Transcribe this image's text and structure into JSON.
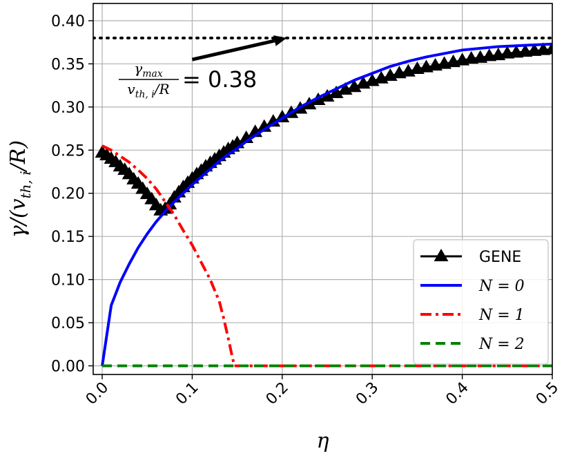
{
  "chart_data": {
    "type": "line",
    "xlabel": "η",
    "ylabel": "γ/(v",
    "ylabel_sub": "th, i",
    "ylabel_tail": "/R)",
    "xlim": [
      -0.01,
      0.5
    ],
    "ylim": [
      -0.01,
      0.42
    ],
    "x_ticks": [
      0.0,
      0.1,
      0.2,
      0.3,
      0.4,
      0.5
    ],
    "x_tick_labels": [
      "0.0",
      "0.1",
      "0.2",
      "0.3",
      "0.4",
      "0.5"
    ],
    "y_ticks": [
      0.0,
      0.05,
      0.1,
      0.15,
      0.2,
      0.25,
      0.3,
      0.35,
      0.4
    ],
    "y_tick_labels": [
      "0.00",
      "0.05",
      "0.10",
      "0.15",
      "0.20",
      "0.25",
      "0.30",
      "0.35",
      "0.40"
    ],
    "grid": true,
    "legend_position": "bottom-right",
    "hline": {
      "y": 0.38,
      "style": "dotted",
      "color": "#000000"
    },
    "annotation": {
      "num": "γ",
      "num_sub": "max",
      "den": "v",
      "den_sub": "th, i",
      "den_tail": "/R",
      "value_text": "= 0.38",
      "arrow_from": [
        0.1,
        0.355
      ],
      "arrow_to": [
        0.205,
        0.38
      ]
    },
    "series": [
      {
        "name": "GENE",
        "color": "#000000",
        "style": "solid-triangle",
        "x": [
          0.0,
          0.005,
          0.01,
          0.015,
          0.02,
          0.025,
          0.03,
          0.035,
          0.04,
          0.045,
          0.05,
          0.055,
          0.06,
          0.065,
          0.07,
          0.075,
          0.08,
          0.085,
          0.09,
          0.095,
          0.1,
          0.105,
          0.11,
          0.115,
          0.12,
          0.125,
          0.13,
          0.135,
          0.14,
          0.145,
          0.15,
          0.16,
          0.17,
          0.18,
          0.19,
          0.2,
          0.21,
          0.22,
          0.23,
          0.24,
          0.25,
          0.26,
          0.27,
          0.28,
          0.29,
          0.3,
          0.31,
          0.32,
          0.33,
          0.34,
          0.35,
          0.36,
          0.37,
          0.38,
          0.39,
          0.4,
          0.41,
          0.42,
          0.43,
          0.44,
          0.45,
          0.46,
          0.47,
          0.48,
          0.49,
          0.5
        ],
        "y": [
          0.247,
          0.244,
          0.24,
          0.236,
          0.231,
          0.227,
          0.222,
          0.216,
          0.211,
          0.205,
          0.199,
          0.193,
          0.186,
          0.18,
          0.182,
          0.187,
          0.195,
          0.201,
          0.207,
          0.212,
          0.217,
          0.222,
          0.226,
          0.231,
          0.235,
          0.239,
          0.243,
          0.247,
          0.251,
          0.254,
          0.258,
          0.264,
          0.271,
          0.277,
          0.283,
          0.288,
          0.293,
          0.298,
          0.303,
          0.308,
          0.312,
          0.316,
          0.32,
          0.323,
          0.327,
          0.33,
          0.333,
          0.336,
          0.339,
          0.341,
          0.344,
          0.346,
          0.348,
          0.35,
          0.352,
          0.354,
          0.356,
          0.357,
          0.359,
          0.36,
          0.362,
          0.363,
          0.364,
          0.365,
          0.366,
          0.367
        ]
      },
      {
        "name": "N = 0",
        "color": "#0000ff",
        "style": "solid",
        "x": [
          0.0,
          0.01,
          0.02,
          0.03,
          0.04,
          0.05,
          0.06,
          0.07,
          0.08,
          0.09,
          0.1,
          0.11,
          0.12,
          0.13,
          0.14,
          0.15,
          0.16,
          0.18,
          0.2,
          0.22,
          0.24,
          0.26,
          0.28,
          0.3,
          0.32,
          0.34,
          0.36,
          0.38,
          0.4,
          0.42,
          0.44,
          0.46,
          0.48,
          0.5
        ],
        "y": [
          0.0,
          0.07,
          0.097,
          0.118,
          0.137,
          0.153,
          0.167,
          0.179,
          0.19,
          0.2,
          0.21,
          0.219,
          0.228,
          0.237,
          0.245,
          0.252,
          0.26,
          0.274,
          0.287,
          0.3,
          0.311,
          0.321,
          0.331,
          0.339,
          0.347,
          0.353,
          0.358,
          0.362,
          0.366,
          0.368,
          0.37,
          0.371,
          0.372,
          0.373
        ]
      },
      {
        "name": "N = 1",
        "color": "#ff0000",
        "style": "dashdot",
        "x": [
          0.0,
          0.01,
          0.02,
          0.03,
          0.04,
          0.05,
          0.06,
          0.07,
          0.08,
          0.09,
          0.1,
          0.11,
          0.12,
          0.13,
          0.135,
          0.14,
          0.145,
          0.147,
          0.15,
          0.16,
          0.2,
          0.3,
          0.4,
          0.5
        ],
        "y": [
          0.255,
          0.25,
          0.243,
          0.236,
          0.227,
          0.217,
          0.205,
          0.19,
          0.175,
          0.157,
          0.14,
          0.12,
          0.1,
          0.075,
          0.055,
          0.032,
          0.008,
          0.0,
          0.0,
          0.0,
          0.0,
          0.0,
          0.0,
          0.0
        ]
      },
      {
        "name": "N = 2",
        "color": "#008000",
        "style": "dashed",
        "x": [
          0.0,
          0.5
        ],
        "y": [
          0.0,
          0.0
        ]
      }
    ],
    "legend": [
      {
        "label": "GENE",
        "italic": false
      },
      {
        "label": "N = 0",
        "italic": true
      },
      {
        "label": "N = 1",
        "italic": true
      },
      {
        "label": "N = 2",
        "italic": true
      }
    ]
  }
}
